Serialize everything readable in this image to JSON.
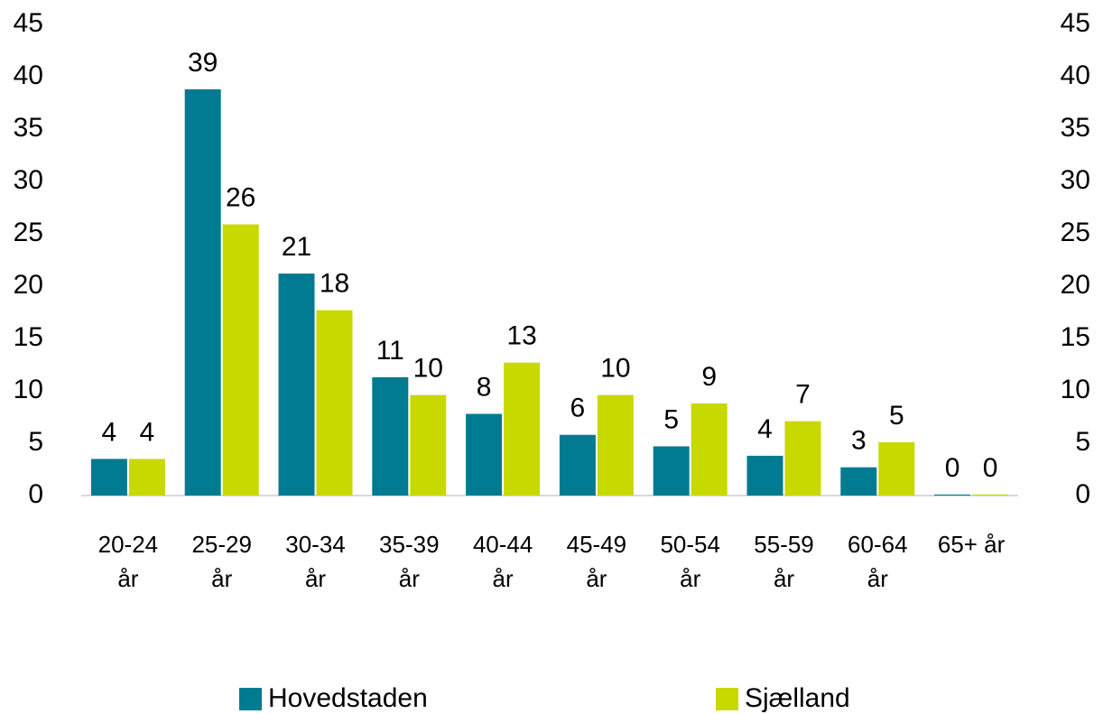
{
  "chart_data": {
    "type": "bar",
    "categories": [
      "20-24 år",
      "25-29 år",
      "30-34 år",
      "35-39 år",
      "40-44 år",
      "45-49 år",
      "50-54 år",
      "55-59 år",
      "60-64 år",
      "65+ år"
    ],
    "series": [
      {
        "name": "Hovedstaden",
        "color": "#007b91",
        "values": [
          3.5,
          38.8,
          21.2,
          11.3,
          7.8,
          5.8,
          4.7,
          3.8,
          2.7,
          0.1
        ],
        "value_labels": [
          "4",
          "39",
          "21",
          "11",
          "8",
          "6",
          "5",
          "4",
          "3",
          "0"
        ]
      },
      {
        "name": "Sjælland",
        "color": "#c8d900",
        "values": [
          3.5,
          25.9,
          17.7,
          9.6,
          12.7,
          9.6,
          8.8,
          7.1,
          5.1,
          0.1
        ],
        "value_labels": [
          "4",
          "26",
          "18",
          "10",
          "13",
          "10",
          "9",
          "7",
          "5",
          "0"
        ]
      }
    ],
    "ylim": [
      0,
      45
    ],
    "yticks": [
      0,
      5,
      10,
      15,
      20,
      25,
      30,
      35,
      40,
      45
    ],
    "y2lim": [
      0,
      45
    ],
    "y2ticks": [
      0,
      5,
      10,
      15,
      20,
      25,
      30,
      35,
      40,
      45
    ],
    "grid": false
  }
}
